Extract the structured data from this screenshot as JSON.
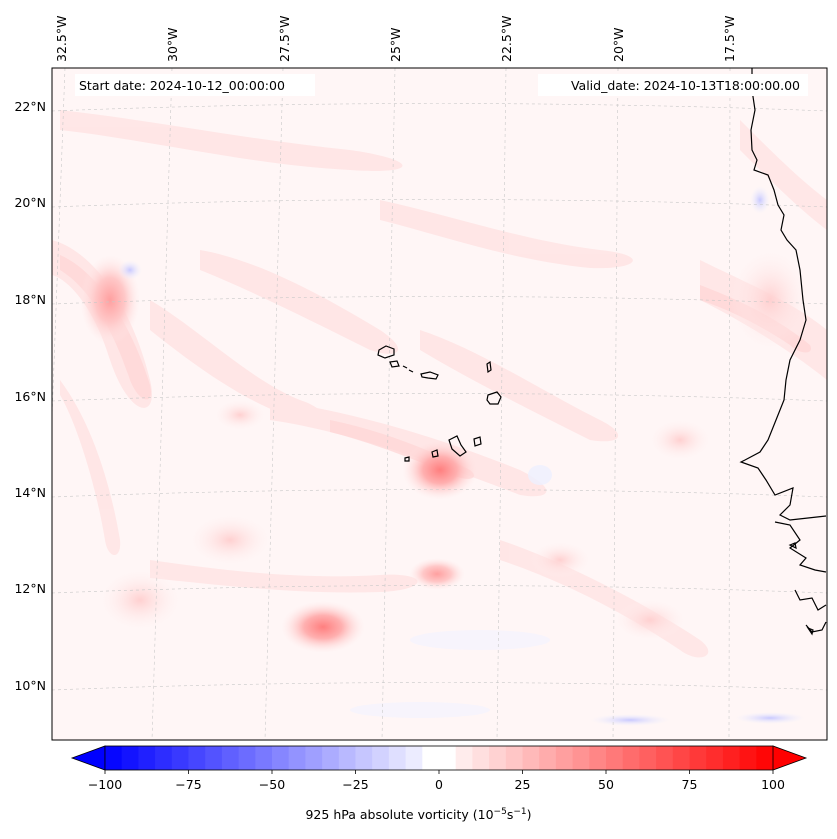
{
  "header": {
    "start_date": "Start date: 2024-10-12_00:00:00",
    "valid_date": "Valid_date: 2024-10-13T18:00:00.00"
  },
  "axes": {
    "lon_labels": [
      "32.5°W",
      "30°W",
      "27.5°W",
      "25°W",
      "22.5°W",
      "20°W",
      "17.5°W"
    ],
    "lat_labels": [
      "22°N",
      "20°N",
      "18°N",
      "16°N",
      "14°N",
      "12°N",
      "10°N"
    ]
  },
  "colorbar": {
    "ticks": [
      "−100",
      "−75",
      "−50",
      "−25",
      "0",
      "25",
      "50",
      "75",
      "100"
    ],
    "label_prefix": "925 hPa absolute vorticity (10",
    "label_exp1": "−5",
    "label_mid": "s",
    "label_exp2": "−1",
    "label_suffix": ")",
    "vmin": -100,
    "vmax": 100,
    "colors": {
      "negative": "#0000ff",
      "zero": "#ffffff",
      "positive": "#ff0000"
    }
  },
  "map": {
    "field": "925 hPa absolute vorticity",
    "coast_color": "#000000",
    "grid_color": "#c8c8c8"
  }
}
